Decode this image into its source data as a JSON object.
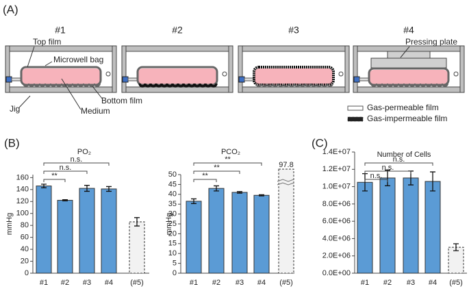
{
  "panel_labels": [
    "(A)",
    "(B)",
    "(C)"
  ],
  "diagram": {
    "conditions": [
      "#1",
      "#2",
      "#3",
      "#4"
    ],
    "labels": {
      "top_film": "Top film",
      "microwell_bag": "Microwell bag",
      "medium": "Medium",
      "bottom_film": "Bottom film",
      "jig": "Jig",
      "pressing_plate": "Pressing plate"
    },
    "legend": [
      "Gas-permeable film",
      "Gas-impermeable film"
    ]
  },
  "chart_data": [
    {
      "type": "bar",
      "title": "PO₂",
      "y_label": "mmHg",
      "categories": [
        "#1",
        "#2",
        "#3",
        "#4",
        "(#5)"
      ],
      "values": [
        146,
        122,
        142,
        141,
        86
      ],
      "errors": [
        3,
        1,
        5,
        4,
        7
      ],
      "color": "#5b9bd5",
      "reference_color": "#f2f2f2",
      "ylim": [
        0,
        165
      ],
      "yticks": [
        0,
        20,
        40,
        60,
        80,
        100,
        120,
        140,
        160
      ],
      "comparisons": [
        {
          "label": "**",
          "from": 0,
          "to": 1
        },
        {
          "label": "n.s.",
          "from": 0,
          "to": 2
        },
        {
          "label": "n.s.",
          "from": 0,
          "to": 3
        }
      ]
    },
    {
      "type": "bar",
      "title": "PCO₂",
      "y_label": "mmHg",
      "categories": [
        "#1",
        "#2",
        "#3",
        "#4",
        "(#5)"
      ],
      "values": [
        36.5,
        43,
        41,
        39.5,
        97.8
      ],
      "value_labels": [
        null,
        null,
        null,
        null,
        "97.8"
      ],
      "errors": [
        1.2,
        1.3,
        0.4,
        0.3,
        null
      ],
      "color": "#5b9bd5",
      "reference_color": "#f2f2f2",
      "ylim": [
        0,
        50
      ],
      "yticks": [
        0,
        5,
        10,
        15,
        20,
        25,
        30,
        35,
        40,
        45,
        50
      ],
      "comparisons": [
        {
          "label": "**",
          "from": 0,
          "to": 1
        },
        {
          "label": "**",
          "from": 0,
          "to": 2
        },
        {
          "label": "**",
          "from": 0,
          "to": 3
        }
      ]
    },
    {
      "type": "bar",
      "title": "Number of Cells",
      "categories": [
        "#1",
        "#2",
        "#3",
        "#4",
        "(#5)"
      ],
      "values": [
        10500000,
        11000000,
        11000000,
        10600000,
        3000000
      ],
      "errors": [
        1000000,
        900000,
        800000,
        1100000,
        400000
      ],
      "color": "#5b9bd5",
      "reference_color": "#f2f2f2",
      "ylim": [
        0,
        14000000
      ],
      "yticks": [
        {
          "value": 0,
          "label": "0.0E+00"
        },
        {
          "value": 2000000,
          "label": "2.0E+06"
        },
        {
          "value": 4000000,
          "label": "4.0E+06"
        },
        {
          "value": 6000000,
          "label": "6.0E+06"
        },
        {
          "value": 8000000,
          "label": "8.0E+06"
        },
        {
          "value": 10000000,
          "label": "1.0E+07"
        },
        {
          "value": 12000000,
          "label": "1.2E+07"
        },
        {
          "value": 14000000,
          "label": "1.4E+07"
        }
      ],
      "comparisons": [
        {
          "label": "n.s.",
          "from": 0,
          "to": 1
        },
        {
          "label": "n.s.",
          "from": 0,
          "to": 2
        },
        {
          "label": "n.s.",
          "from": 0,
          "to": 3
        }
      ]
    }
  ]
}
